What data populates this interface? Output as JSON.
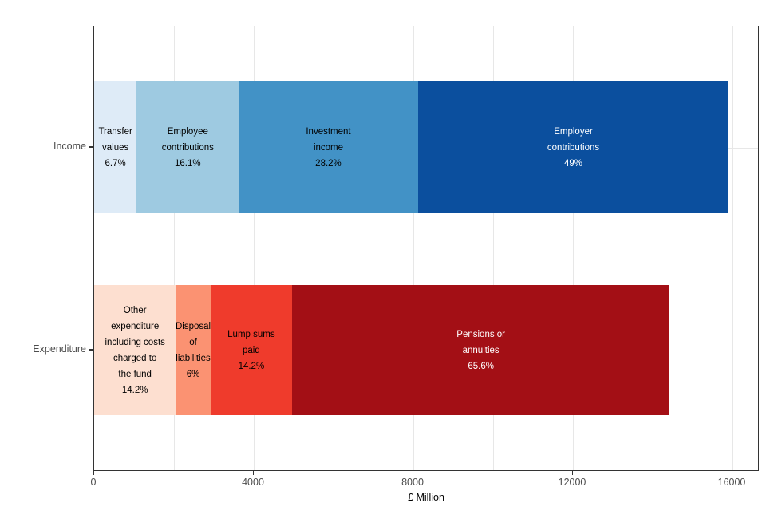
{
  "chart_data": {
    "type": "bar",
    "orientation": "horizontal",
    "stacked": true,
    "title": "",
    "xlabel": "£ Million",
    "ylabel": "",
    "x_axis": {
      "min": 0,
      "max_tick": 16000,
      "tick_values": [
        0,
        4000,
        8000,
        12000,
        16000
      ],
      "tick_labels": [
        "0",
        "4000",
        "8000",
        "12000",
        "16000"
      ],
      "gridline_interval": 2000,
      "gridline_values": [
        2000,
        4000,
        6000,
        8000,
        10000,
        12000,
        14000,
        16000
      ]
    },
    "categories": [
      "Income",
      "Expenditure"
    ],
    "grid_on": true,
    "legend": "none",
    "rows": [
      {
        "category": "Income",
        "total_est_million": 15910,
        "segments": [
          {
            "name": "Transfer values",
            "pct": "6.7%",
            "value_est_million": 1066,
            "color": "#DEEBF7",
            "text_color": "#000000",
            "label_lines": [
              "Transfer",
              "values",
              "6.7%"
            ]
          },
          {
            "name": "Employee contributions",
            "pct": "16.1%",
            "value_est_million": 2561,
            "color": "#9ECAE1",
            "text_color": "#000000",
            "label_lines": [
              "Employee",
              "contributions",
              "16.1%"
            ]
          },
          {
            "name": "Investment income",
            "pct": "28.2%",
            "value_est_million": 4486,
            "color": "#4292C6",
            "text_color": "#000000",
            "label_lines": [
              "Investment",
              "income",
              "28.2%"
            ]
          },
          {
            "name": "Employer contributions",
            "pct": "49%",
            "value_est_million": 7795,
            "color": "#0B4F9E",
            "text_color": "#FFFFFF",
            "label_lines": [
              "Employer",
              "contributions",
              "49%"
            ]
          }
        ]
      },
      {
        "category": "Expenditure",
        "total_est_million": 14425,
        "segments": [
          {
            "name": "Other expenditure including costs charged to the fund",
            "pct": "14.2%",
            "value_est_million": 2048,
            "color": "#FDDFD0",
            "text_color": "#000000",
            "label_lines": [
              "Other",
              "expenditure",
              "including costs",
              "charged to",
              "the fund",
              "14.2%"
            ]
          },
          {
            "name": "Disposal of liabilities",
            "pct": "6%",
            "value_est_million": 866,
            "color": "#FB9272",
            "text_color": "#000000",
            "label_lines": [
              "Disposal",
              "of",
              "liabilities",
              "6%"
            ]
          },
          {
            "name": "Lump sums paid",
            "pct": "14.2%",
            "value_est_million": 2048,
            "color": "#EF3B2C",
            "text_color": "#000000",
            "label_lines": [
              "Lump sums",
              "paid",
              "14.2%"
            ]
          },
          {
            "name": "Pensions or annuities",
            "pct": "65.6%",
            "value_est_million": 9463,
            "color": "#A30F15",
            "text_color": "#FFFFFF",
            "label_lines": [
              "Pensions or",
              "annuities",
              "65.6%"
            ]
          }
        ]
      }
    ],
    "style_colors": {
      "panel_border": "#333333",
      "gridline": "#e7e7e7",
      "axis_text": "#4d4d4d",
      "axis_title": "#000000",
      "background": "#ffffff"
    }
  }
}
